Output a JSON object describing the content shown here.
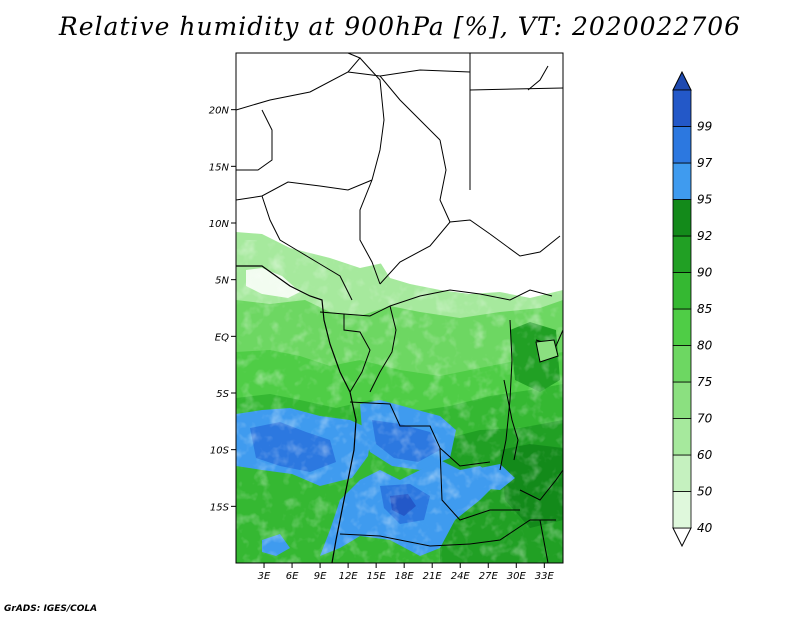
{
  "title": "Relative humidity at 900hPa [%], VT: 2020022706",
  "credit": "GrADS: IGES/COLA",
  "map": {
    "variable": "Relative humidity",
    "level": "900hPa",
    "units": "%",
    "valid_time": "2020022706",
    "lon_range": [
      0,
      35
    ],
    "lat_range": [
      -20,
      25
    ],
    "x_ticks": [
      {
        "value": 3,
        "label": "3E"
      },
      {
        "value": 6,
        "label": "6E"
      },
      {
        "value": 9,
        "label": "9E"
      },
      {
        "value": 12,
        "label": "12E"
      },
      {
        "value": 15,
        "label": "15E"
      },
      {
        "value": 18,
        "label": "18E"
      },
      {
        "value": 21,
        "label": "21E"
      },
      {
        "value": 24,
        "label": "24E"
      },
      {
        "value": 27,
        "label": "27E"
      },
      {
        "value": 30,
        "label": "30E"
      },
      {
        "value": 33,
        "label": "33E"
      }
    ],
    "y_ticks": [
      {
        "value": 20,
        "label": "20N"
      },
      {
        "value": 15,
        "label": "15N"
      },
      {
        "value": 10,
        "label": "10N"
      },
      {
        "value": 5,
        "label": "5N"
      },
      {
        "value": 0,
        "label": "EQ"
      },
      {
        "value": -5,
        "label": "5S"
      },
      {
        "value": -10,
        "label": "10S"
      },
      {
        "value": -15,
        "label": "15S"
      }
    ]
  },
  "colorbar": {
    "levels": [
      {
        "label": "40",
        "color": "#dff8dc"
      },
      {
        "label": "50",
        "color": "#c5f1bf"
      },
      {
        "label": "60",
        "color": "#a6e99d"
      },
      {
        "label": "70",
        "color": "#8be080"
      },
      {
        "label": "75",
        "color": "#6dd762"
      },
      {
        "label": "80",
        "color": "#4fcd46"
      },
      {
        "label": "85",
        "color": "#35b832"
      },
      {
        "label": "90",
        "color": "#21a024"
      },
      {
        "label": "92",
        "color": "#138a1a"
      },
      {
        "label": "95",
        "color": "#3f9bef"
      },
      {
        "label": "97",
        "color": "#2c78e0"
      },
      {
        "label": "99",
        "color": "#2358c8"
      }
    ],
    "below_color": "#ffffff",
    "above_color": "#1f4ab0"
  }
}
